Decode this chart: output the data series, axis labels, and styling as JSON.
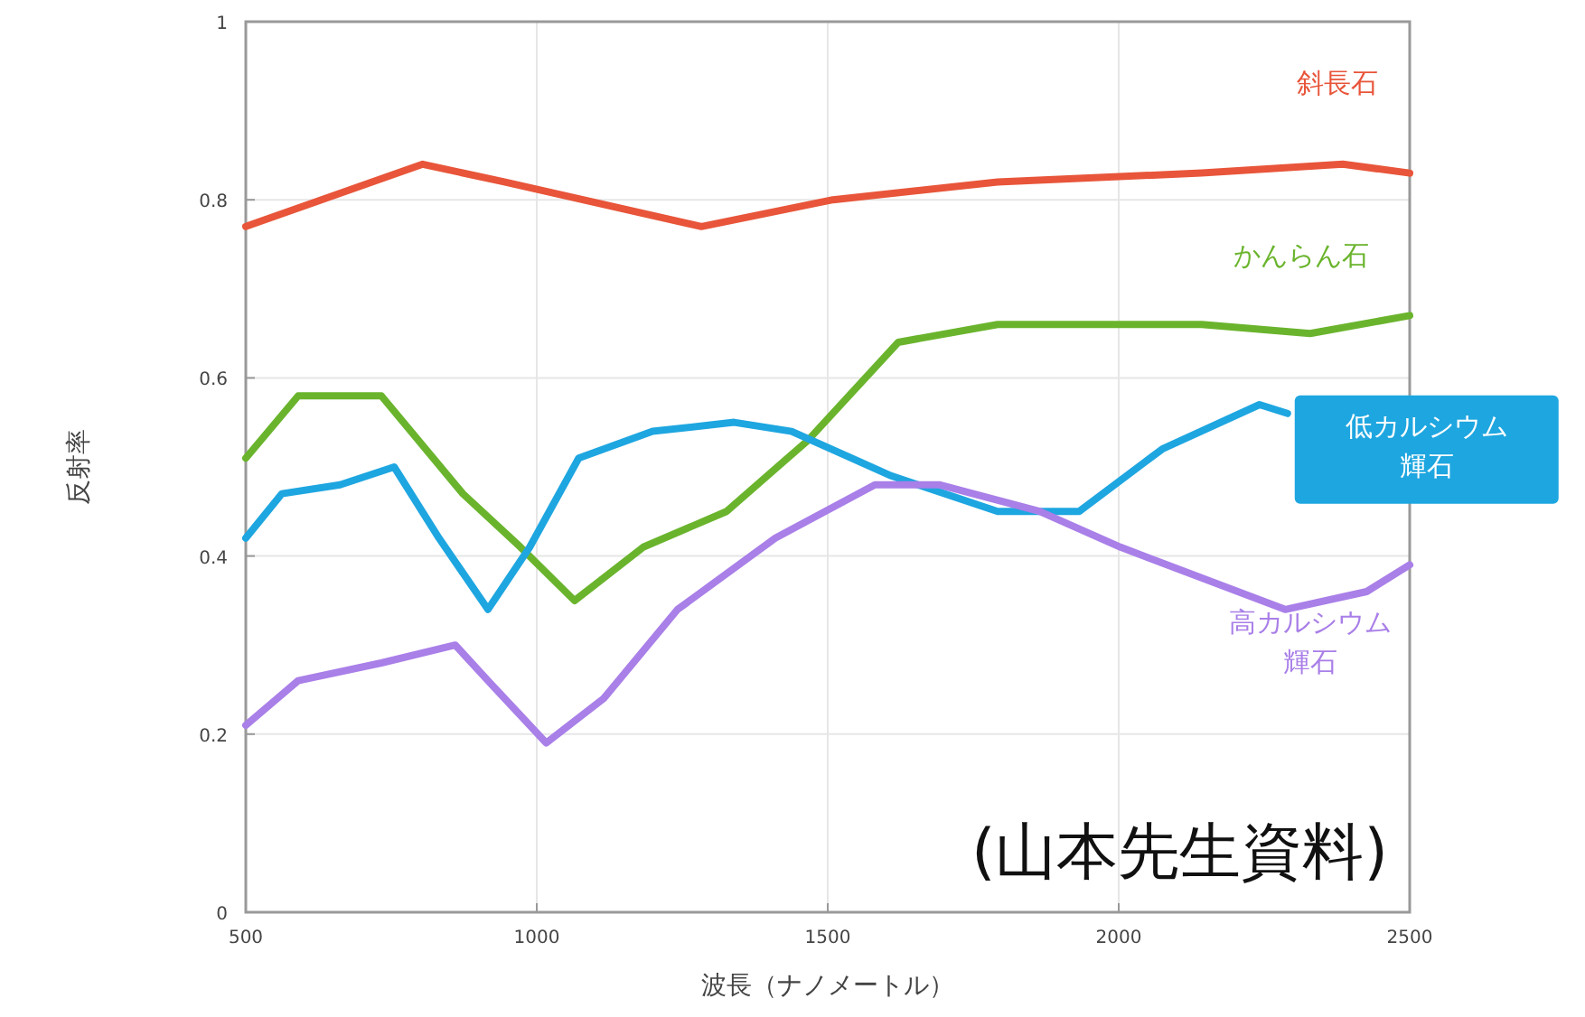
{
  "chart_data": {
    "type": "line",
    "xlabel": "波長（ナノメートル）",
    "ylabel": "反射率",
    "xlim": [
      500,
      2500
    ],
    "xticks": [
      500,
      1000,
      1500,
      2000,
      2500
    ],
    "ylim": [
      0,
      1
    ],
    "yticks": [
      0,
      0.2,
      0.4,
      0.6,
      0.8,
      1
    ],
    "grid": true,
    "legend": false,
    "marker": "none",
    "line_style": "solid",
    "series": [
      {
        "name": "斜長石",
        "color": "#e8553a",
        "x": [
          500,
          804,
          944,
          1283,
          1509,
          1792,
          2143,
          2385,
          2500
        ],
        "values": [
          0.77,
          0.84,
          0.82,
          0.77,
          0.8,
          0.82,
          0.83,
          0.84,
          0.83
        ]
      },
      {
        "name": "かんらん石",
        "color": "#6ab42d",
        "x": [
          500,
          590,
          733,
          873,
          972,
          1065,
          1183,
          1326,
          1466,
          1621,
          1792,
          2143,
          2329,
          2500
        ],
        "values": [
          0.51,
          0.58,
          0.58,
          0.47,
          0.41,
          0.35,
          0.41,
          0.45,
          0.53,
          0.64,
          0.66,
          0.66,
          0.65,
          0.67
        ]
      },
      {
        "name": "低カルシウム輝石",
        "color": "#1ea6e0",
        "x": [
          500,
          562,
          662,
          755,
          832,
          916,
          988,
          1072,
          1199,
          1339,
          1438,
          1609,
          1792,
          1932,
          2075,
          2242,
          2290
        ],
        "values": [
          0.42,
          0.47,
          0.48,
          0.5,
          0.42,
          0.34,
          0.41,
          0.51,
          0.54,
          0.55,
          0.54,
          0.49,
          0.45,
          0.45,
          0.52,
          0.57,
          0.56
        ]
      },
      {
        "name": "高カルシウム輝石",
        "color": "#a97fe8",
        "x": [
          500,
          590,
          733,
          860,
          916,
          1016,
          1115,
          1242,
          1410,
          1581,
          1693,
          1864,
          2003,
          2286,
          2426,
          2500
        ],
        "values": [
          0.21,
          0.26,
          0.28,
          0.3,
          0.26,
          0.19,
          0.24,
          0.34,
          0.42,
          0.48,
          0.48,
          0.45,
          0.41,
          0.34,
          0.36,
          0.39
        ]
      }
    ],
    "annotations": [
      "(山本先生資料)"
    ]
  }
}
